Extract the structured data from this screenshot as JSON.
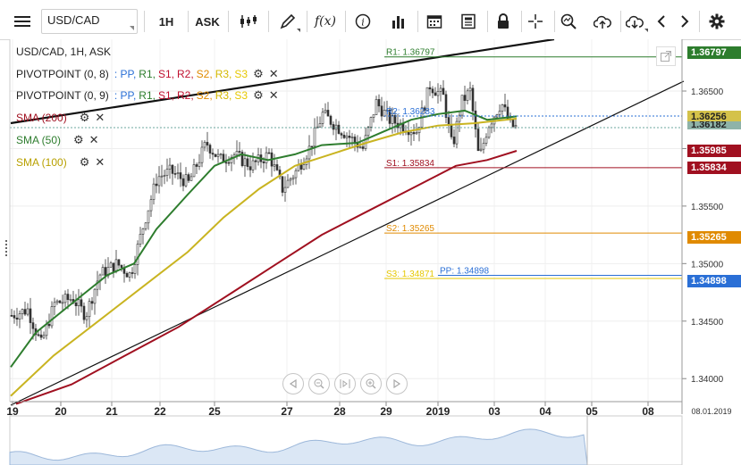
{
  "toolbar": {
    "symbol": "USD/CAD",
    "timeframe": "1H",
    "price_type": "ASK",
    "fx_label": "f(x)"
  },
  "legend": {
    "instrument": "USD/CAD, 1H, ASK",
    "pivot1": {
      "name": "PIVOTPOINT (0, 8)",
      "labels": [
        ": PP,",
        "R1,",
        "S1,",
        "R2,",
        "S2,",
        "R3,",
        "S3"
      ]
    },
    "pivot2": {
      "name": "PIVOTPOINT (0, 9)",
      "labels": [
        ": PP,",
        "R1,",
        "S1,",
        "R2,",
        "S2,",
        "R3,",
        "S3"
      ]
    },
    "sma200": "SMA (200)",
    "sma50": "SMA (50)",
    "sma100": "SMA (100)"
  },
  "colors": {
    "pp": "#2a6fd6",
    "r1": "#2d7d2d",
    "s1": "#c0102f",
    "r2": "#c0102f",
    "s2": "#e08a00",
    "r3": "#d4b800",
    "s3": "#e6c800",
    "sma200": "#a01020",
    "sma50": "#2e7d2e",
    "sma100": "#c9b421"
  },
  "pivots": {
    "r1": "R1: 1.36797",
    "r2": "R2: 1.36283",
    "s1": "S1: 1.35834",
    "s2": "S2: 1.35265",
    "s3": "S3: 1.34871",
    "pp": "PP: 1.34898"
  },
  "price_tags": {
    "r1": "1.36797",
    "last1": "1.36256",
    "last2": "1.36182",
    "sma200": "1.35985",
    "s1": "1.35834",
    "s2": "1.35265",
    "pp": "1.34898"
  },
  "chart_data": {
    "type": "line",
    "y_ticks": [
      "1.36500",
      "1.36000",
      "1.35500",
      "1.35000",
      "1.34500",
      "1.34000"
    ],
    "x_ticks": [
      "19",
      "20",
      "21",
      "22",
      "25",
      "27",
      "28",
      "29",
      "2019",
      "03",
      "04",
      "05",
      "08"
    ],
    "x_date_label": "08.01.2019",
    "ylim": [
      1.338,
      1.3695
    ]
  }
}
